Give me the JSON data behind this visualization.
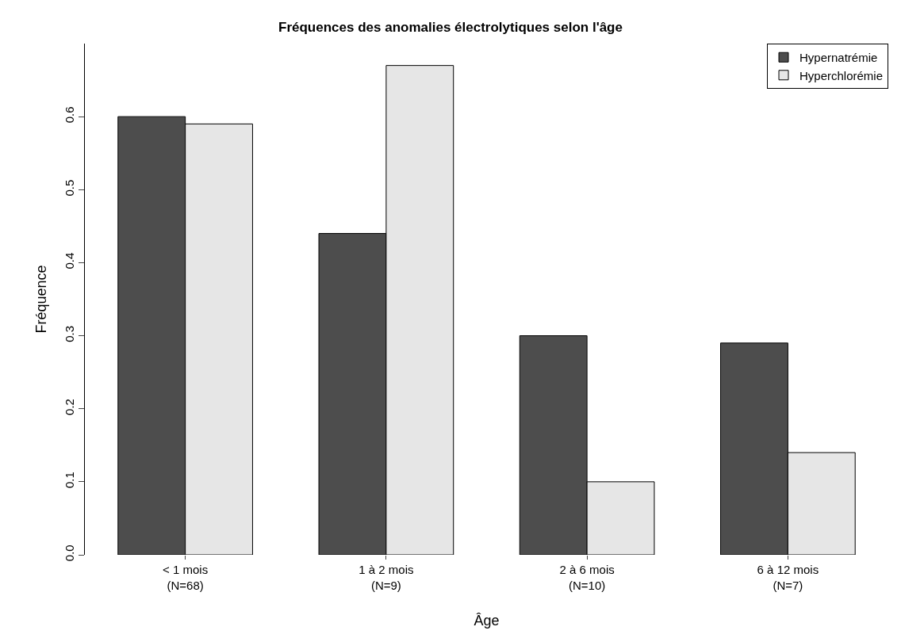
{
  "chart_data": {
    "type": "bar",
    "title": "Fréquences des anomalies électrolytiques selon l'âge",
    "xlabel": "Âge",
    "ylabel": "Fréquence",
    "categories": [
      "< 1 mois\n(N=68)",
      "1 à 2 mois\n(N=9)",
      "2 à 6 mois\n(N=10)",
      "6 à 12 mois\n(N=7)"
    ],
    "series": [
      {
        "name": "Hypernatrémie",
        "color": "#4d4d4d",
        "values": [
          0.6,
          0.44,
          0.3,
          0.29
        ]
      },
      {
        "name": "Hyperchlorémie",
        "color": "#e6e6e6",
        "values": [
          0.59,
          0.67,
          0.1,
          0.14
        ]
      }
    ],
    "ylim": [
      0,
      0.7
    ],
    "yticks": [
      {
        "value": 0,
        "label": "0.0"
      },
      0.1,
      0.2,
      0.3,
      0.4,
      0.5,
      0.6
    ],
    "legend": "top right"
  }
}
